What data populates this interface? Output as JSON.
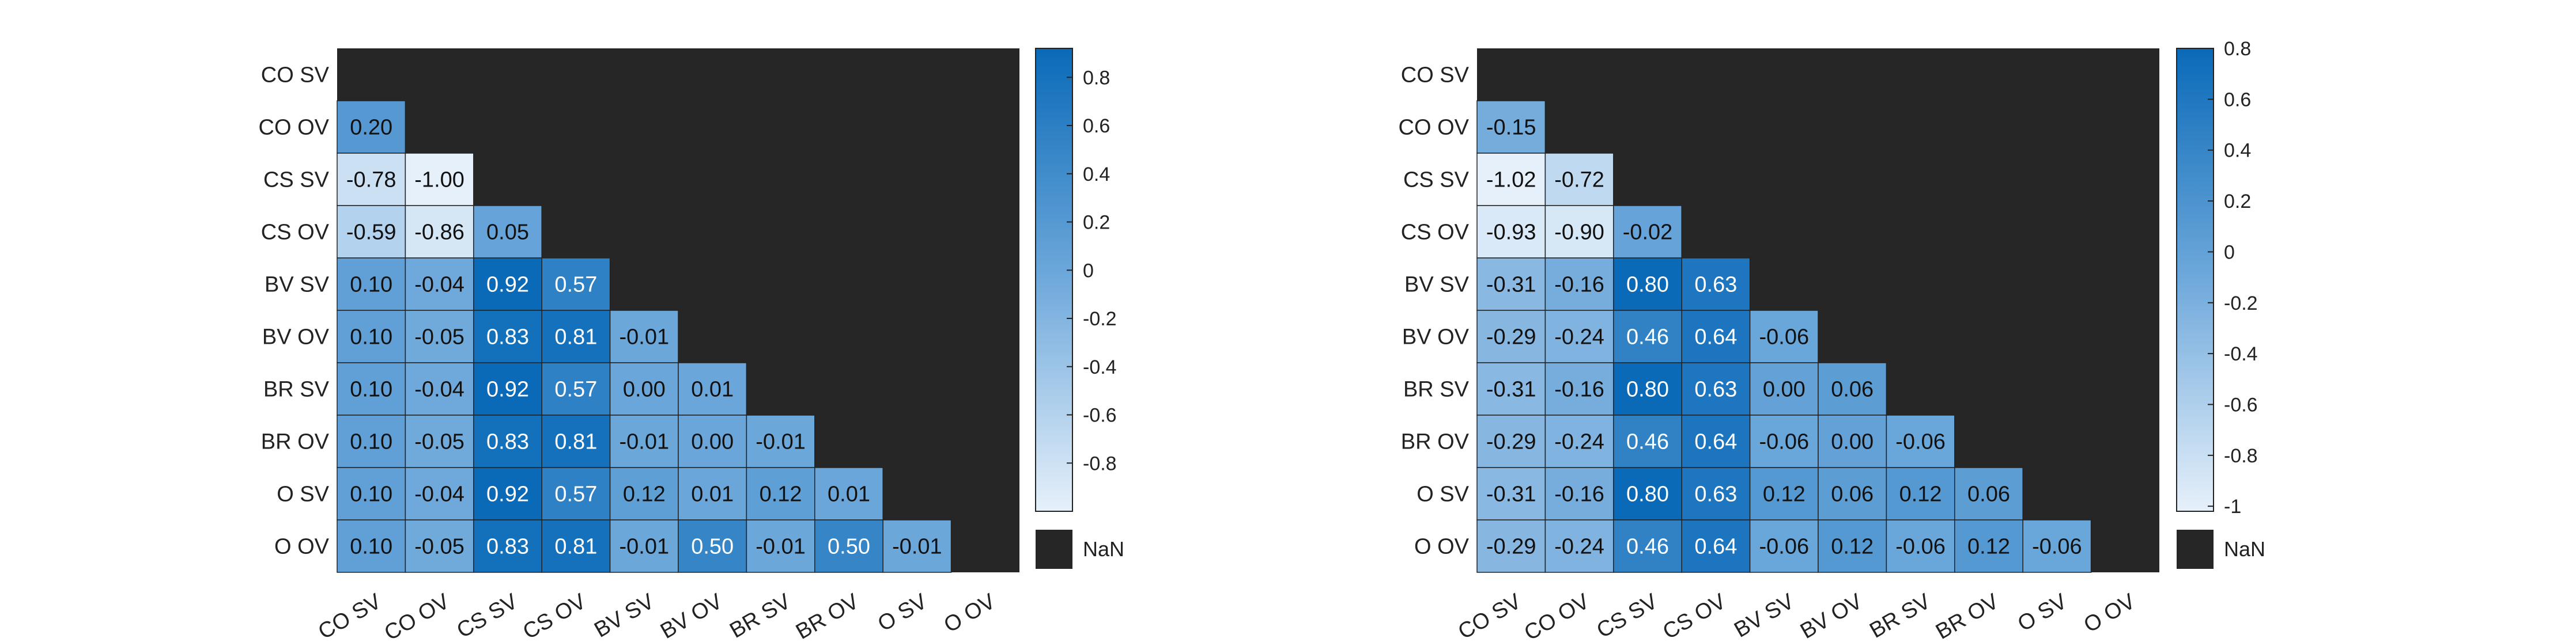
{
  "chart_data": [
    {
      "type": "heatmap",
      "title": "",
      "xlabel": "",
      "ylabel": "",
      "row_labels": [
        "CO SV",
        "CO OV",
        "CS SV",
        "CS OV",
        "BV SV",
        "BV OV",
        "BR SV",
        "BR OV",
        "O SV",
        "O OV"
      ],
      "col_labels": [
        "CO SV",
        "CO OV",
        "CS SV",
        "CS OV",
        "BV SV",
        "BV OV",
        "BR SV",
        "BR OV",
        "O SV",
        "O OV"
      ],
      "values": [
        [],
        [
          0.2
        ],
        [
          -0.78,
          -1.0
        ],
        [
          -0.59,
          -0.86,
          0.05
        ],
        [
          0.1,
          -0.04,
          0.92,
          0.57
        ],
        [
          0.1,
          -0.05,
          0.83,
          0.81,
          -0.01
        ],
        [
          0.1,
          -0.04,
          0.92,
          0.57,
          0.0,
          0.01
        ],
        [
          0.1,
          -0.05,
          0.83,
          0.81,
          -0.01,
          0.0,
          -0.01
        ],
        [
          0.1,
          -0.04,
          0.92,
          0.57,
          0.12,
          0.01,
          0.12,
          0.01
        ],
        [
          0.1,
          -0.05,
          0.83,
          0.81,
          -0.01,
          0.5,
          -0.01,
          0.5,
          -0.01
        ]
      ],
      "color_range": [
        -1.0,
        0.92
      ],
      "colorbar_ticks": [
        0.8,
        0.6,
        0.4,
        0.2,
        0,
        -0.2,
        -0.4,
        -0.6,
        -0.8
      ],
      "colorbar_tick_labels": [
        "0.8",
        "0.6",
        "0.4",
        "0.2",
        "0",
        "-0.2",
        "-0.4",
        "-0.6",
        "-0.8"
      ],
      "nan_label": "NaN"
    },
    {
      "type": "heatmap",
      "title": "",
      "xlabel": "",
      "ylabel": "",
      "row_labels": [
        "CO SV",
        "CO OV",
        "CS SV",
        "CS OV",
        "BV SV",
        "BV OV",
        "BR SV",
        "BR OV",
        "O SV",
        "O OV"
      ],
      "col_labels": [
        "CO SV",
        "CO OV",
        "CS SV",
        "CS OV",
        "BV SV",
        "BV OV",
        "BR SV",
        "BR OV",
        "O SV",
        "O OV"
      ],
      "values": [
        [],
        [
          -0.15
        ],
        [
          -1.02,
          -0.72
        ],
        [
          -0.93,
          -0.9,
          -0.02
        ],
        [
          -0.31,
          -0.16,
          0.8,
          0.63
        ],
        [
          -0.29,
          -0.24,
          0.46,
          0.64,
          -0.06
        ],
        [
          -0.31,
          -0.16,
          0.8,
          0.63,
          0.0,
          0.06
        ],
        [
          -0.29,
          -0.24,
          0.46,
          0.64,
          -0.06,
          0.0,
          -0.06
        ],
        [
          -0.31,
          -0.16,
          0.8,
          0.63,
          0.12,
          0.06,
          0.12,
          0.06
        ],
        [
          -0.29,
          -0.24,
          0.46,
          0.64,
          -0.06,
          0.12,
          -0.06,
          0.12,
          -0.06
        ]
      ],
      "color_range": [
        -1.02,
        0.8
      ],
      "colorbar_ticks": [
        0.8,
        0.6,
        0.4,
        0.2,
        0,
        -0.2,
        -0.4,
        -0.6,
        -0.8,
        -1
      ],
      "colorbar_tick_labels": [
        "0.8",
        "0.6",
        "0.4",
        "0.2",
        "0",
        "-0.2",
        "-0.4",
        "-0.6",
        "-0.8",
        "-1"
      ],
      "nan_label": "NaN"
    }
  ]
}
